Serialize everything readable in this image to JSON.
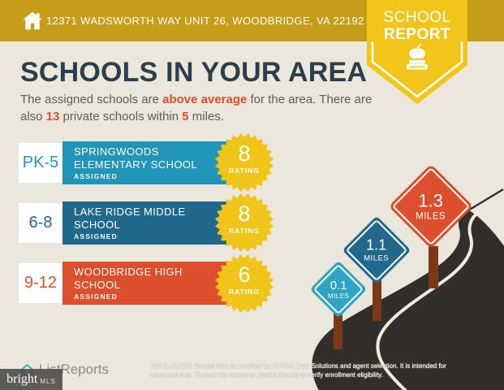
{
  "colors": {
    "background": "#ebe7dc",
    "header_gold": "#c59d18",
    "badge_yellow": "#f1c51a",
    "title": "#2c3e4a",
    "body_text": "#5c5c5c",
    "accent_orange": "#dc4e2c",
    "burst_yellow": "#f0c419",
    "road": "#322e2c",
    "road_stripe": "#efebe0",
    "post_brown": "#7b3a16"
  },
  "header": {
    "address": "12371 WADSWORTH WAY UNIT 26, WOODBRIDGE, VA 22192",
    "badge_line1": "SCHOOL",
    "badge_line2": "REPORT"
  },
  "main": {
    "title": "SCHOOLS IN YOUR AREA",
    "subtitle": {
      "p1": "The assigned schools are ",
      "h1": "above average",
      "p2": " for the area. There are also ",
      "h2": "13",
      "p3": " private schools within ",
      "h3": "5",
      "p4": " miles."
    }
  },
  "schools": [
    {
      "grade": "PK-5",
      "name": "SPRINGWOODS ELEMENTARY SCHOOL",
      "status": "ASSIGNED",
      "rating": "8",
      "rating_label": "RATING",
      "color": "#2095b7"
    },
    {
      "grade": "6-8",
      "name": "LAKE RIDGE MIDDLE SCHOOL",
      "status": "ASSIGNED",
      "rating": "8",
      "rating_label": "RATING",
      "color": "#20698c"
    },
    {
      "grade": "9-12",
      "name": "WOODBRIDGE HIGH SCHOOL",
      "status": "ASSIGNED",
      "rating": "6",
      "rating_label": "RATING",
      "color": "#dc4e2c"
    }
  ],
  "signs": [
    {
      "distance": "0.1",
      "unit": "MILES",
      "color": "#2ca4c2"
    },
    {
      "distance": "1.1",
      "unit": "MILES",
      "color": "#20698c"
    },
    {
      "distance": "1.3",
      "unit": "MILES",
      "color": "#dc4e2c"
    }
  ],
  "footer": {
    "brand": "ListReports",
    "watermark_name": "bright",
    "watermark_suffix": "MLS",
    "disclaimer_label": "DISCLAIMER:",
    "disclaimer_text": " School data is provided by ATTOM Data Solutions and agent selection. It is intended for reference only. Contact the school or district directly to verify enrollment eligibility."
  }
}
